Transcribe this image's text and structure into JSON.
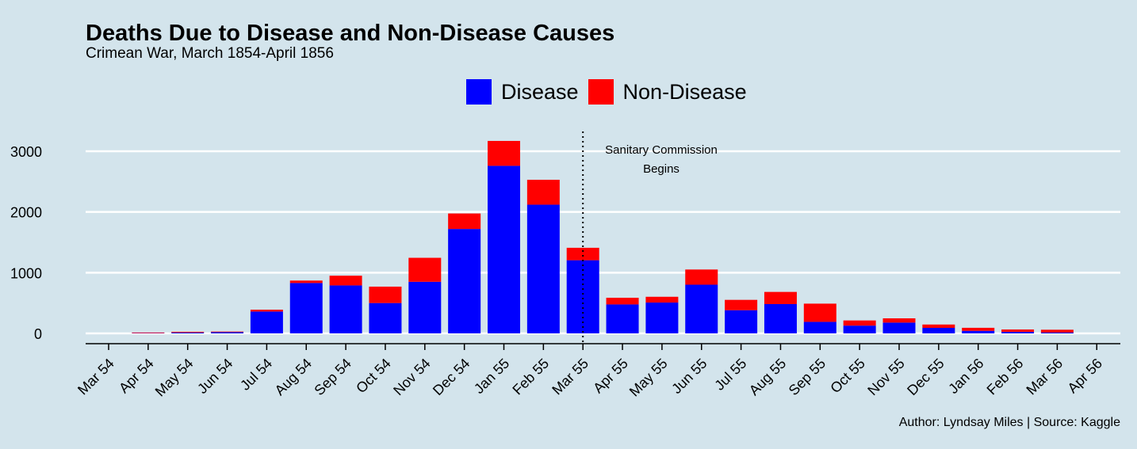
{
  "chart_data": {
    "type": "bar",
    "stacked": true,
    "title": "Deaths Due to Disease and Non-Disease Causes",
    "subtitle": "Crimean War, March 1854-April 1856",
    "caption": "Author: Lyndsay Miles | Source: Kaggle",
    "categories": [
      "Mar 54",
      "Apr 54",
      "May 54",
      "Jun 54",
      "Jul 54",
      "Aug 54",
      "Sep 54",
      "Oct 54",
      "Nov 54",
      "Dec 54",
      "Jan 55",
      "Feb 55",
      "Mar 55",
      "Apr 55",
      "May 55",
      "Jun 55",
      "Jul 55",
      "Aug 55",
      "Sep 55",
      "Oct 55",
      "Nov 55",
      "Dec 55",
      "Jan 56",
      "Feb 56",
      "Mar 56",
      "Apr 56"
    ],
    "series": [
      {
        "name": "Disease",
        "color": "#0000ff",
        "values": [
          0,
          5,
          15,
          20,
          360,
          830,
          790,
          500,
          850,
          1720,
          2760,
          2120,
          1205,
          477,
          508,
          802,
          382,
          483,
          190,
          128,
          178,
          91,
          42,
          24,
          15,
          0
        ]
      },
      {
        "name": "Non-Disease",
        "color": "#ff0000",
        "values": [
          0,
          10,
          12,
          10,
          30,
          40,
          160,
          270,
          395,
          255,
          410,
          410,
          205,
          110,
          95,
          250,
          170,
          200,
          300,
          85,
          70,
          55,
          50,
          40,
          45,
          0
        ]
      }
    ],
    "yticks": [
      0,
      1000,
      2000,
      3000
    ],
    "ylim": [
      -150,
      3400
    ],
    "grid": true,
    "legend_position": "top-center",
    "annotation": {
      "lines": [
        "Sanitary Commission",
        "Begins"
      ],
      "x_category": "Mar 55"
    }
  }
}
